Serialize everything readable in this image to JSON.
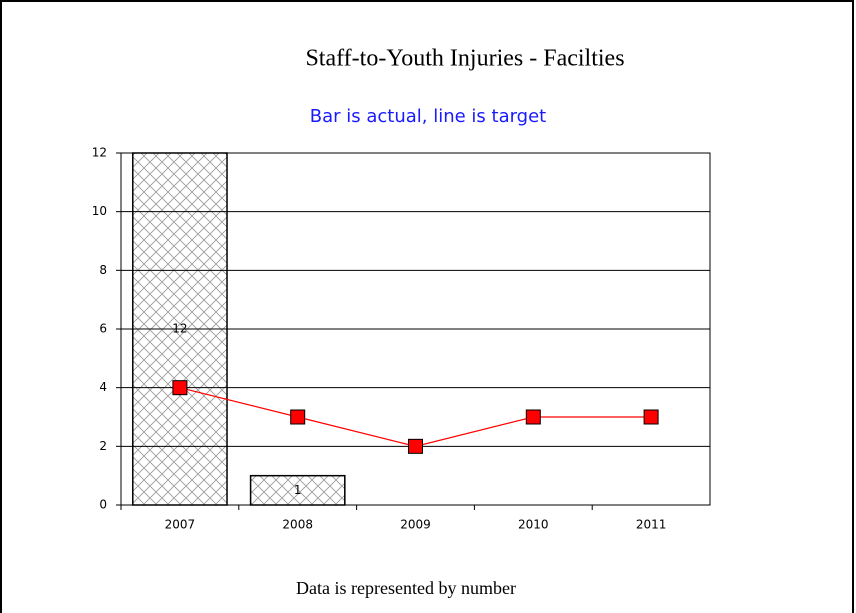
{
  "chart_data": {
    "type": "bar",
    "title": "Staff-to-Youth Injuries - Facilties",
    "subtitle": "Bar is actual, line is target",
    "footer": "Data is represented by number",
    "categories": [
      "2007",
      "2008",
      "2009",
      "2010",
      "2011"
    ],
    "values": [
      12,
      1,
      null,
      null,
      null
    ],
    "line": {
      "color": "#ff0000",
      "values": [
        4,
        3,
        2,
        3,
        3
      ]
    },
    "ylim": [
      0,
      12
    ],
    "yticks": [
      0,
      2,
      4,
      6,
      8,
      10,
      12
    ],
    "grid": true
  }
}
